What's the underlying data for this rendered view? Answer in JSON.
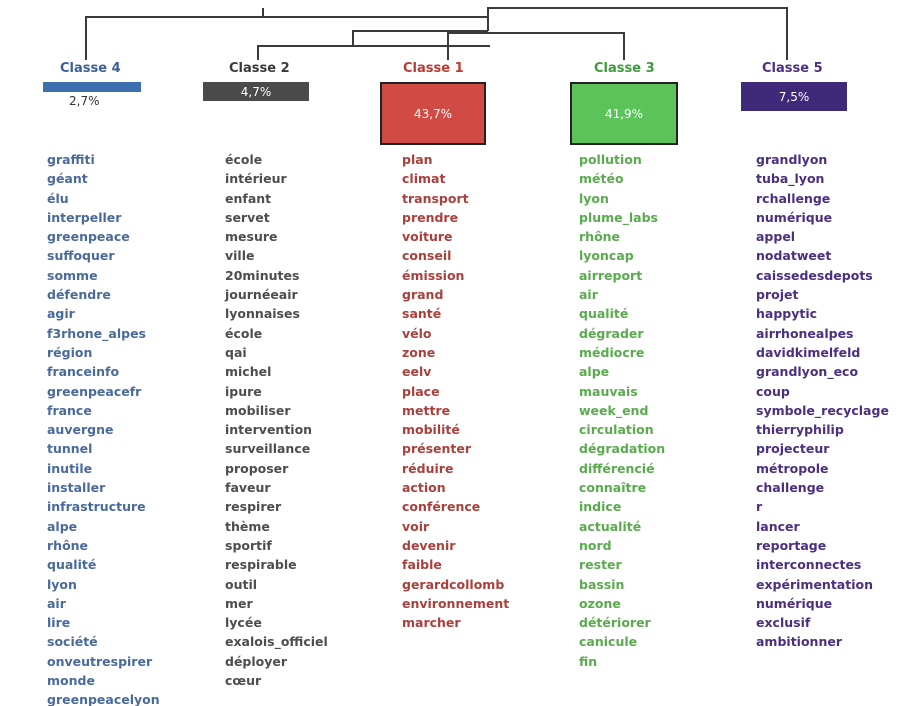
{
  "classes": [
    {
      "title": "Classe 4",
      "percent": "2,7%",
      "color": "#4a6a9c",
      "words": [
        "graffiti",
        "géant",
        "élu",
        "interpeller",
        "greenpeace",
        "suffoquer",
        "somme",
        "défendre",
        "agir",
        "f3rhone_alpes",
        "région",
        "franceinfo",
        "greenpeacefr",
        "france",
        "auvergne",
        "tunnel",
        "inutile",
        "installer",
        "infrastructure",
        "alpe",
        "rhône",
        "qualité",
        "lyon",
        "air",
        "lire",
        "société",
        "onveutrespirer",
        "monde",
        "greenpeacelyon"
      ]
    },
    {
      "title": "Classe 2",
      "percent": "4,7%",
      "color": "#4d4d4d",
      "words": [
        "école",
        "intérieur",
        "enfant",
        "servet",
        "mesure",
        "ville",
        "20minutes",
        "journéeair",
        "lyonnaises",
        "école",
        "qai",
        "michel",
        "ipure",
        "mobiliser",
        "intervention",
        "surveillance",
        "proposer",
        "faveur",
        "respirer",
        "thème",
        "sportif",
        "respirable",
        "outil",
        "mer",
        "lycée",
        "exalois_officiel",
        "déployer",
        "cœur"
      ]
    },
    {
      "title": "Classe 1",
      "percent": "43,7%",
      "color": "#a9403c",
      "words": [
        "plan",
        "climat",
        "transport",
        "prendre",
        "voiture",
        "conseil",
        "émission",
        "grand",
        "santé",
        "vélo",
        "zone",
        "eelv",
        "place",
        "mettre",
        "mobilité",
        "présenter",
        "réduire",
        "action",
        "conférence",
        "voir",
        "devenir",
        "faible",
        "gerardcollomb",
        "environnement",
        "marcher"
      ]
    },
    {
      "title": "Classe 3",
      "percent": "41,9%",
      "color": "#5aaa4e",
      "words": [
        "pollution",
        "météo",
        "lyon",
        "plume_labs",
        "rhône",
        "lyoncap",
        "airreport",
        "air",
        "qualité",
        "dégrader",
        "médiocre",
        "alpe",
        "mauvais",
        "week_end",
        "circulation",
        "dégradation",
        "différencié",
        "connaître",
        "indice",
        "actualité",
        "nord",
        "rester",
        "bassin",
        "ozone",
        "détériorer",
        "canicule",
        "fin"
      ]
    },
    {
      "title": "Classe 5",
      "percent": "7,5%",
      "color": "#4b2f80",
      "words": [
        "grandlyon",
        "tuba_lyon",
        "rchallenge",
        "numérique",
        "appel",
        "nodatweet",
        "caissedesdepots",
        "projet",
        "happytic",
        "airrhonealpes",
        "davidkimelfeld",
        "grandlyon_eco",
        "coup",
        "symbole_recyclage",
        "thierryphilip",
        "projecteur",
        "métropole",
        "challenge",
        "r",
        "lancer",
        "reportage",
        "interconnectes",
        "expérimentation",
        "numérique",
        "exclusif",
        "ambitionner"
      ]
    }
  ]
}
